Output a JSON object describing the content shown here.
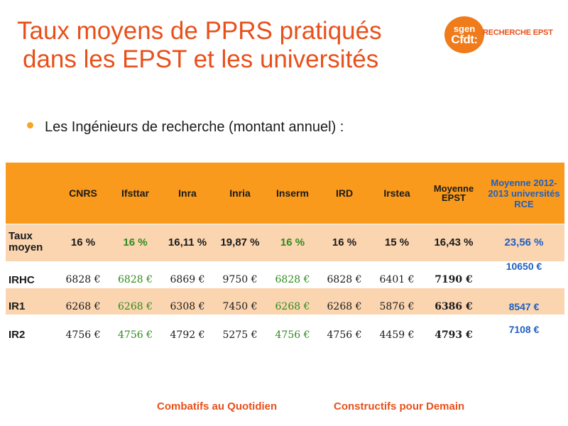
{
  "title": {
    "line1": "Taux moyens de PPRS pratiqués",
    "line2": "dans les EPST et les universités"
  },
  "logo": {
    "top": "sgen",
    "bottom": "Cfdt:",
    "side": "RECHERCHE EPST",
    "color": "#ef7b1a"
  },
  "bullet": "Les Ingénieurs de recherche (montant annuel) :",
  "table": {
    "headers": [
      "",
      "CNRS",
      "Ifsttar",
      "Inra",
      "Inria",
      "Inserm",
      "IRD",
      "Irstea",
      "Moyenne EPST",
      "Moyenne 2012-2013 universités RCE"
    ],
    "rows": [
      {
        "label": "Taux moyen",
        "cells": [
          "16 %",
          "16 %",
          "16,11 %",
          "19,87 %",
          "16 %",
          "16 %",
          "15 %",
          "16,43 %",
          "23,56 %"
        ]
      },
      {
        "label": "IRHC",
        "cells": [
          "6828 €",
          "6828 €",
          "6869 €",
          "9750 €",
          "6828 €",
          "6828 €",
          "6401 €",
          "7190 €",
          "10650 €"
        ]
      },
      {
        "label": "IR1",
        "cells": [
          "6268 €",
          "6268 €",
          "6308 €",
          "7450 €",
          "6268 €",
          "6268 €",
          "5876 €",
          "6386 €",
          "8547 €"
        ]
      },
      {
        "label": "IR2",
        "cells": [
          "4756 €",
          "4756 €",
          "4792 €",
          "5275 €",
          "4756 €",
          "4756 €",
          "4459 €",
          "4793 €",
          "7108 €"
        ]
      }
    ],
    "colors": {
      "header_band": "#f99a1c",
      "row_band": "#fbd5b0",
      "green": "#2e8b1e",
      "blue": "#1f5fbf"
    }
  },
  "footer": {
    "left": "Combatifs au Quotidien",
    "right": "Constructifs pour Demain",
    "color": "#e8501a"
  }
}
